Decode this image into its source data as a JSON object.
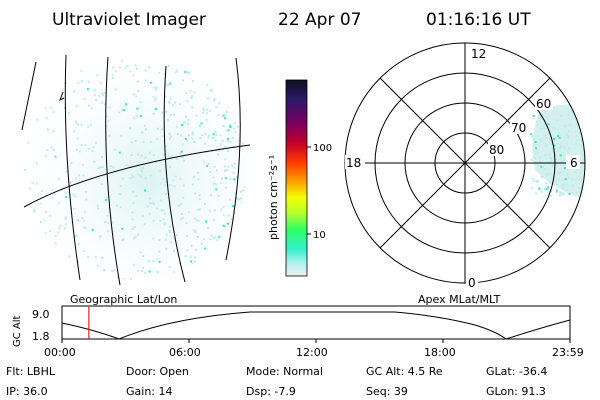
{
  "header": {
    "instrument": "Ultraviolet Imager",
    "date": "22 Apr 07",
    "time": "01:16:16 UT"
  },
  "colorbar": {
    "unit_label": "photon cm⁻²s⁻¹",
    "tick_labels": [
      "100",
      "10"
    ],
    "colors": [
      "#101020",
      "#2a1a6a",
      "#7a0060",
      "#c0002a",
      "#ff3a00",
      "#ffa000",
      "#f0ff00",
      "#b8ff30",
      "#30ff60",
      "#30f0c8",
      "#a8f0f0",
      "#f0f0f0"
    ]
  },
  "geo_panel": {
    "caption": "Geographic Lat/Lon"
  },
  "polar_panel": {
    "caption": "Apex MLat/MLT",
    "mlt_labels": {
      "top": "12",
      "bottom": "0",
      "left": "18",
      "right": "6"
    },
    "mlat_labels": [
      "60",
      "70",
      "80"
    ]
  },
  "altitude_plot": {
    "ylabel": "GC Alt",
    "ytick_labels": [
      "9.0",
      "1.8"
    ],
    "xtick_labels": [
      "00:00",
      "06:00",
      "12:00",
      "18:00",
      "23:59"
    ],
    "current_time_hours": 1.27,
    "marker_color": "#e02020"
  },
  "status": {
    "filter": "Flt: LBHL",
    "door": "Door: Open",
    "mode": "Mode: Normal",
    "gc_alt": "GC Alt: 4.5 Re",
    "glat": "GLat: -36.4",
    "ip": "IP: 36.0",
    "gain": "Gain: 14",
    "dsp": "Dsp:  -7.9",
    "seq": "Seq: 39",
    "glon": "GLon:  91.3"
  },
  "accent_color": "#30e8c0",
  "speckle_color": "#bfeaea"
}
